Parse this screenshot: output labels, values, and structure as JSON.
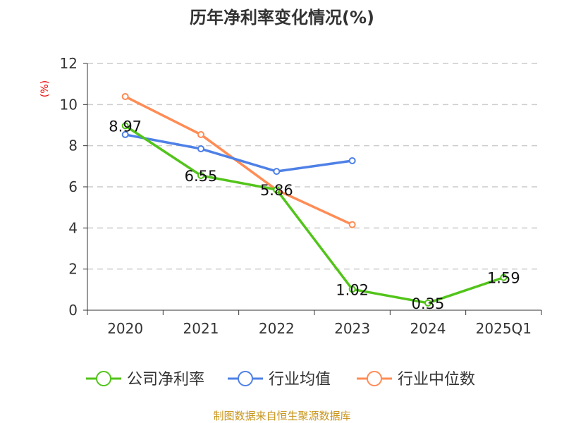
{
  "chart_data": {
    "type": "line",
    "title": "历年净利率变化情况(%)",
    "ylabel": "(%)",
    "xlabel": "",
    "categories": [
      "2020",
      "2021",
      "2022",
      "2023",
      "2024",
      "2025Q1"
    ],
    "ylim": [
      0,
      12
    ],
    "yticks": [
      0,
      2,
      4,
      6,
      8,
      10,
      12
    ],
    "grid": true,
    "legend_position": "bottom",
    "series": [
      {
        "name": "公司净利率",
        "color": "#52c41a",
        "values": [
          8.97,
          6.55,
          5.86,
          1.02,
          0.35,
          1.59
        ],
        "labels": [
          "8.97",
          "6.55",
          "5.86",
          "1.02",
          "0.35",
          "1.59"
        ]
      },
      {
        "name": "行业均值",
        "color": "#4e80e6",
        "values": [
          8.54,
          7.85,
          6.75,
          7.27,
          null,
          null
        ]
      },
      {
        "name": "行业中位数",
        "color": "#ff8c55",
        "values": [
          10.39,
          8.54,
          5.85,
          4.16,
          null,
          null
        ]
      }
    ],
    "source": "制图数据来自恒生聚源数据库"
  }
}
